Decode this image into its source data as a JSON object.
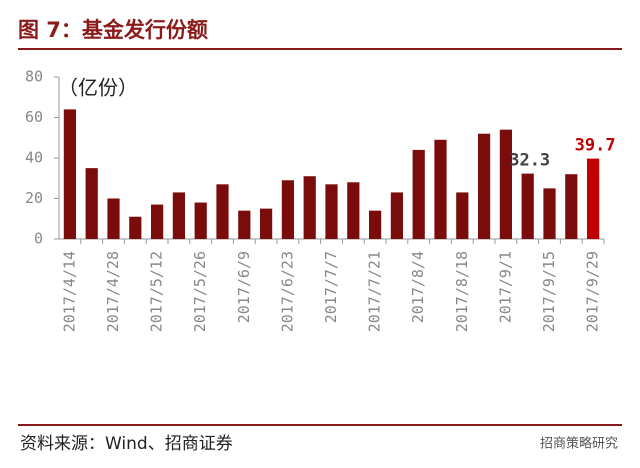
{
  "header": {
    "title": "图 7：基金发行份额"
  },
  "chart_data": {
    "type": "bar",
    "unit_label": "（亿份）",
    "categories": [
      "2017/4/14",
      null,
      "2017/4/28",
      null,
      "2017/5/12",
      null,
      "2017/5/26",
      null,
      "2017/6/9",
      null,
      "2017/6/23",
      null,
      "2017/7/7",
      null,
      "2017/7/21",
      null,
      "2017/8/4",
      null,
      "2017/8/18",
      null,
      "2017/9/1",
      null,
      "2017/9/15",
      null,
      "2017/9/29"
    ],
    "values": [
      64,
      35,
      20,
      11,
      17,
      23,
      18,
      27,
      14,
      15,
      29,
      31,
      27,
      28,
      14,
      23,
      44,
      49,
      23,
      52,
      54,
      32.3,
      25,
      32,
      39.7
    ],
    "color": "#7b0c0c",
    "highlight_color": "#c00000",
    "highlight": [
      24
    ],
    "labeled": [
      21,
      24
    ],
    "label_color": "#404040",
    "ylim": [
      0,
      80
    ],
    "yticks": [
      0,
      20,
      40,
      60,
      80
    ]
  },
  "footer": {
    "source": "资料来源：Wind、招商证券",
    "logo": "招商策略研究"
  }
}
